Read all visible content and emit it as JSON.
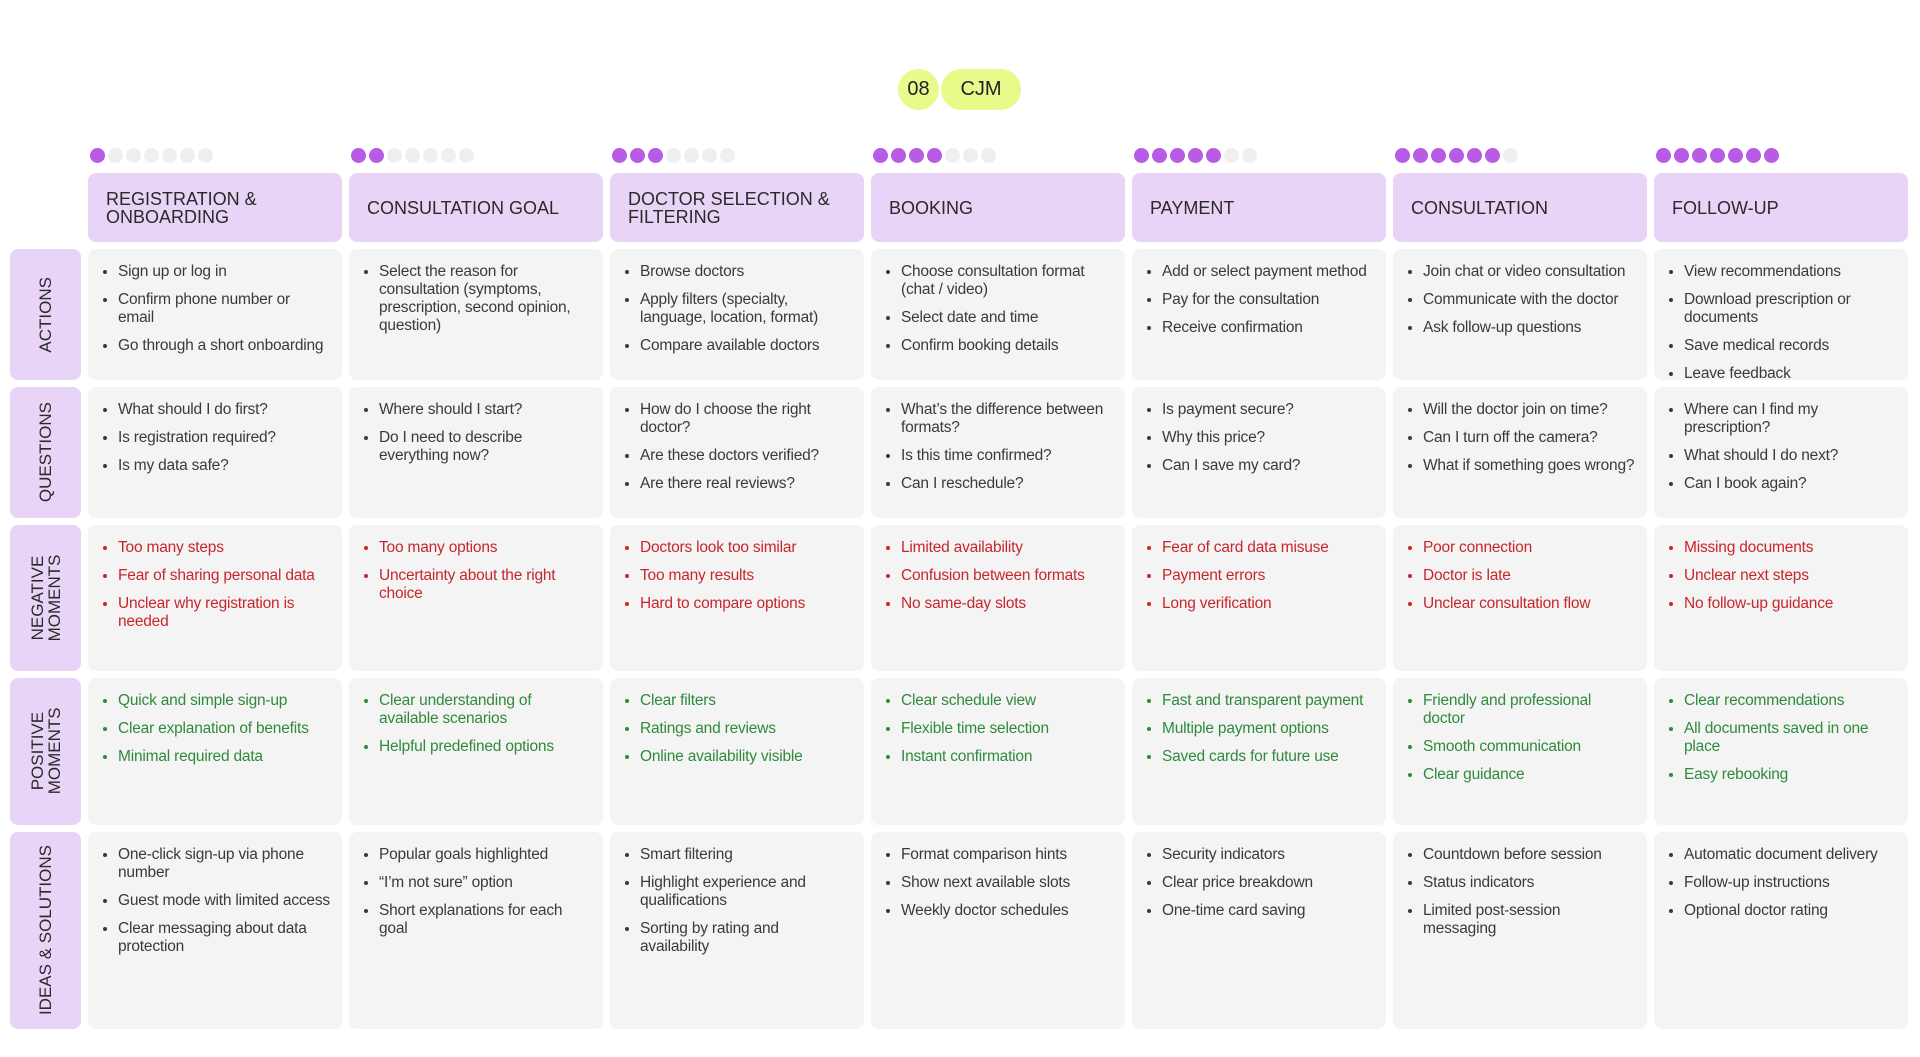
{
  "badge": {
    "number": "08",
    "label": "CJM"
  },
  "stages": [
    {
      "title": "REGISTRATION & ONBOARDING"
    },
    {
      "title": "CONSULTATION GOAL"
    },
    {
      "title": "DOCTOR SELECTION & FILTERING"
    },
    {
      "title": "BOOKING"
    },
    {
      "title": "PAYMENT"
    },
    {
      "title": "CONSULTATION"
    },
    {
      "title": "FOLLOW-UP"
    }
  ],
  "rows": [
    {
      "label": "ACTIONS",
      "cells": [
        [
          "Sign up or log in",
          "Confirm phone number or email",
          "Go through a short onboarding"
        ],
        [
          "Select the reason for consultation (symptoms, prescription, second opinion, question)"
        ],
        [
          "Browse doctors",
          "Apply filters (specialty, language, location, format)",
          "Compare available doctors"
        ],
        [
          "Choose consultation format (chat / video)",
          "Select date and time",
          "Confirm booking details"
        ],
        [
          "Add or select payment method",
          "Pay for the consultation",
          "Receive confirmation"
        ],
        [
          "Join chat or video consultation",
          "Communicate with the doctor",
          "Ask follow-up questions"
        ],
        [
          "View recommendations",
          "Download prescription or documents",
          "Save medical records",
          "Leave feedback"
        ]
      ]
    },
    {
      "label": "QUESTIONS",
      "cells": [
        [
          "What should I do first?",
          "Is registration required?",
          "Is my data safe?"
        ],
        [
          "Where should I start?",
          "Do I need to describe everything now?"
        ],
        [
          "How do I choose the right doctor?",
          "Are these doctors verified?",
          "Are there real reviews?"
        ],
        [
          "What’s the difference between formats?",
          "Is this time confirmed?",
          "Can I reschedule?"
        ],
        [
          "Is payment secure?",
          "Why this price?",
          "Can I save my card?"
        ],
        [
          "Will the doctor join on time?",
          "Can I turn off the camera?",
          "What if something goes wrong?"
        ],
        [
          "Where can I find my prescription?",
          "What should I do next?",
          "Can I book again?"
        ]
      ]
    },
    {
      "label": "NEGATIVE MOMENTS",
      "cells": [
        [
          "Too many steps",
          "Fear of sharing personal data",
          "Unclear why registration is needed"
        ],
        [
          "Too many options",
          "Uncertainty about the right choice"
        ],
        [
          "Doctors look too similar",
          "Too many results",
          "Hard to compare options"
        ],
        [
          "Limited availability",
          "Confusion between formats",
          "No same-day slots"
        ],
        [
          "Fear of card data misuse",
          "Payment errors",
          "Long verification"
        ],
        [
          "Poor connection",
          "Doctor is late",
          "Unclear consultation flow"
        ],
        [
          "Missing documents",
          "Unclear next steps",
          "No follow-up guidance"
        ]
      ]
    },
    {
      "label": "POSITIVE MOMENTS",
      "cells": [
        [
          "Quick and simple sign-up",
          "Clear explanation of benefits",
          "Minimal required data"
        ],
        [
          "Clear understanding of available scenarios",
          "Helpful predefined options"
        ],
        [
          "Clear filters",
          "Ratings and reviews",
          "Online availability visible"
        ],
        [
          "Clear schedule view",
          "Flexible time selection",
          "Instant confirmation"
        ],
        [
          "Fast and transparent payment",
          "Multiple payment options",
          "Saved cards for future use"
        ],
        [
          "Friendly and professional doctor",
          "Smooth communication",
          "Clear guidance"
        ],
        [
          "Clear recommendations",
          "All documents saved in one place",
          "Easy rebooking"
        ]
      ]
    },
    {
      "label": "IDEAS & SOLUTIONS",
      "cells": [
        [
          "One-click sign-up via phone number",
          "Guest mode with limited access",
          "Clear messaging about data protection"
        ],
        [
          "Popular goals highlighted",
          "“I’m not sure” option",
          "Short explanations for each goal"
        ],
        [
          "Smart filtering",
          "Highlight experience and qualifications",
          "Sorting by rating and availability"
        ],
        [
          "Format comparison hints",
          "Show next available slots",
          "Weekly doctor schedules"
        ],
        [
          "Security indicators",
          "Clear price breakdown",
          "One-time card saving"
        ],
        [
          "Countdown before session",
          "Status indicators",
          "Limited post-session messaging"
        ],
        [
          "Automatic document delivery",
          "Follow-up instructions",
          "Optional doctor rating"
        ]
      ]
    }
  ]
}
